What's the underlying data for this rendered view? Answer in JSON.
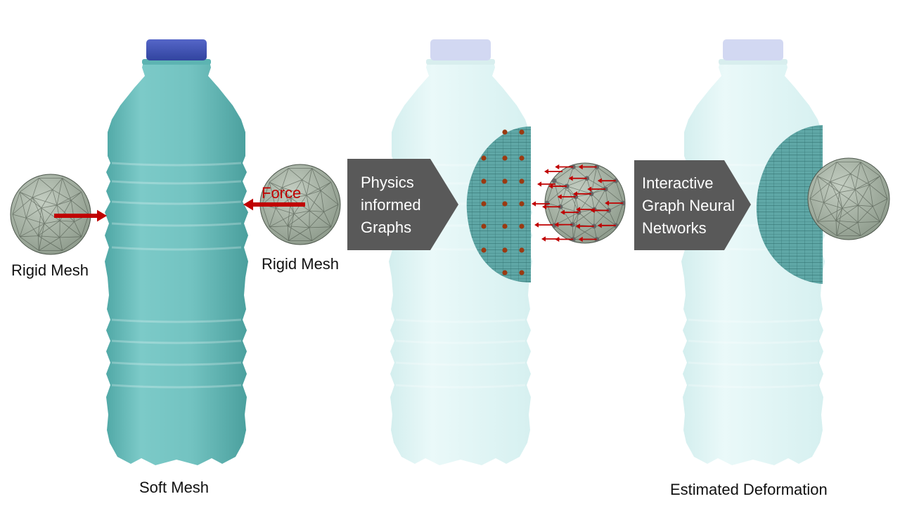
{
  "labels": {
    "rigid_mesh_left": "Rigid Mesh",
    "rigid_mesh_right": "Rigid Mesh",
    "force": "Force",
    "soft_mesh": "Soft Mesh",
    "estimated_deformation": "Estimated Deformation"
  },
  "steps": [
    {
      "lines": [
        "Physics",
        "informed",
        "Graphs"
      ]
    },
    {
      "lines": [
        "Interactive",
        "Graph Neural",
        "Networks"
      ]
    }
  ],
  "colors": {
    "bottle_solid": "#72c2c0",
    "bottle_faded": "#e3f6f6",
    "cap_solid": "#3f53b5",
    "cap_faded": "#d2d8f2",
    "sphere": "#a9b5a7",
    "force_arrow": "#c00000",
    "step_box": "#595959",
    "node_soft": "#9a3a12",
    "node_rigid": "#666666"
  },
  "icons": [
    "bottle-icon",
    "rigid-sphere-icon",
    "force-arrow-icon",
    "chevron-box-icon",
    "graph-node-icon"
  ]
}
